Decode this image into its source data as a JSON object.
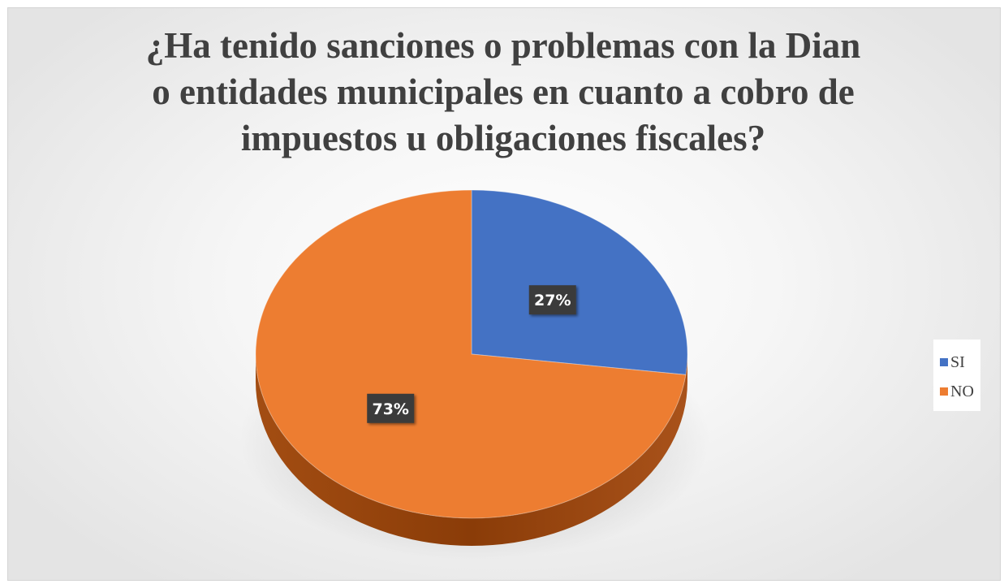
{
  "chart_data": {
    "type": "pie",
    "title": "¿Ha tenido sanciones o problemas con la Dian o entidades municipales en cuanto a cobro de impuestos u obligaciones fiscales?",
    "title_lines": [
      "¿Ha tenido sanciones o problemas con la Dian",
      "o entidades municipales en cuanto a cobro de",
      "impuestos u obligaciones fiscales?"
    ],
    "categories": [
      "SI",
      "NO"
    ],
    "values": [
      27,
      73
    ],
    "data_labels": [
      "27%",
      "73%"
    ],
    "colors": [
      "#4472C4",
      "#ED7D31"
    ],
    "style": "3d-pie",
    "legend_position": "right"
  },
  "legend": {
    "items": [
      {
        "label": "SI",
        "color": "#4472C4"
      },
      {
        "label": "NO",
        "color": "#ED7D31"
      }
    ]
  }
}
